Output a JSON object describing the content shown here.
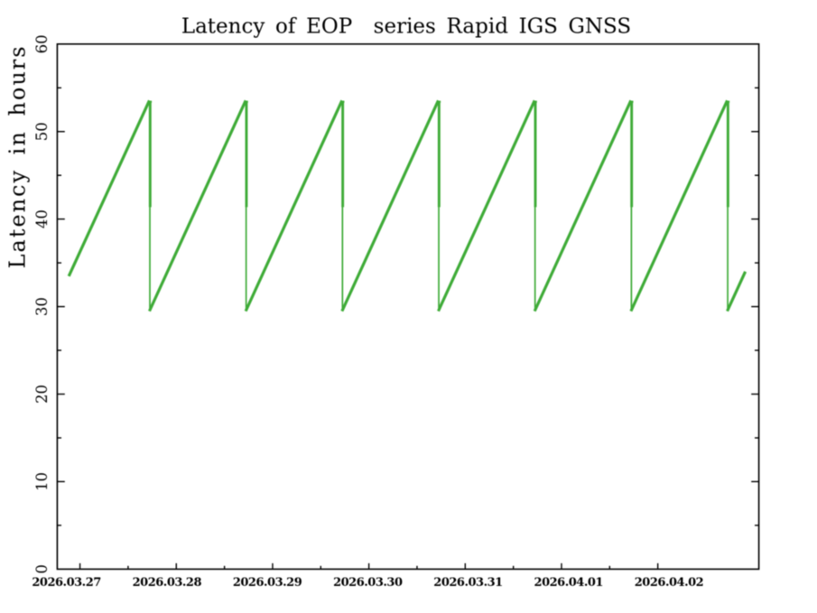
{
  "chart_data": {
    "type": "line",
    "title": "Latency of EOP  series Rapid IGS GNSS",
    "xlabel": "",
    "ylabel": "Latency in hours",
    "background_color": "#ffffff",
    "axis_color": "#000000",
    "grid": false,
    "legend": false,
    "ylim": [
      0,
      60
    ],
    "xlim_days": [
      0.7638,
      8.0492
    ],
    "y_major_ticks": [
      0,
      10,
      20,
      30,
      40,
      50,
      60
    ],
    "y_minor_ticks": [
      5,
      15,
      25,
      35,
      45,
      55
    ],
    "y_tick_labels": [
      "0",
      "10",
      "20",
      "30",
      "40",
      "50",
      "60"
    ],
    "x_major_tick_days": [
      1,
      2,
      3,
      4,
      5,
      6,
      7
    ],
    "x_minor_tick_days": [
      1.5,
      2.5,
      3.5,
      4.5,
      5.5,
      6.5
    ],
    "x_tick_labels": [
      "2026.03.27",
      "2026.03.28",
      "2026.03.29",
      "2026.03.30",
      "2026.03.31",
      "2026.04.01",
      "2026.04.02"
    ],
    "series": [
      {
        "name": "latency-sawtooth",
        "color": "#3eab37",
        "start_point": {
          "day": 0.8838,
          "hours": 33.47
        },
        "end_point": {
          "day": 7.9087,
          "hours": 34.0
        },
        "drop_days": [
          1.7208,
          2.7208,
          3.7208,
          4.7208,
          5.7208,
          6.7208,
          7.7208
        ],
        "peak_hours": 53.55,
        "mid_drop_hours": 41.5,
        "trough_hours": 29.48
      }
    ]
  }
}
